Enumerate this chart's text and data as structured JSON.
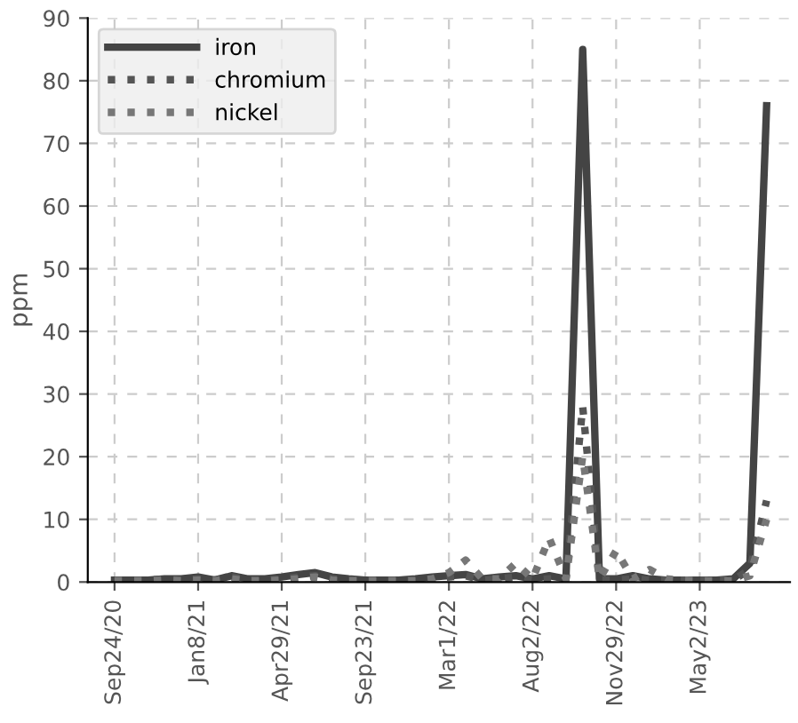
{
  "chart_data": {
    "type": "line",
    "ylabel": "ppm",
    "categories": [
      "Sep24/20",
      null,
      null,
      null,
      null,
      "Jan8/21",
      null,
      null,
      null,
      null,
      "Apr29/21",
      null,
      null,
      null,
      null,
      "Sep23/21",
      null,
      null,
      null,
      null,
      "Mar1/22",
      null,
      null,
      null,
      null,
      "Aug2/22",
      null,
      null,
      null,
      null,
      "Nov29/22",
      null,
      null,
      null,
      null,
      "May2/23",
      null,
      null,
      null,
      null
    ],
    "series": [
      {
        "name": "iron",
        "color": "#444444",
        "line_style": "solid",
        "values": [
          0.3,
          0.3,
          0.3,
          0.5,
          0.5,
          0.8,
          0.3,
          1,
          0.5,
          0.5,
          0.8,
          1.2,
          1.5,
          0.8,
          0.5,
          0.3,
          0.3,
          0.3,
          0.5,
          0.8,
          1,
          1.2,
          0.5,
          0.8,
          1,
          0.5,
          1,
          0.5,
          85,
          0.5,
          0.5,
          1,
          0.5,
          0.3,
          0.3,
          0.3,
          0.3,
          0.5,
          3,
          76
        ]
      },
      {
        "name": "chromium",
        "color": "#555555",
        "line_style": "dotted",
        "values": [
          0.3,
          0.3,
          0.3,
          0.5,
          0.3,
          0.5,
          0.3,
          0.8,
          0.3,
          0.3,
          0.5,
          0.8,
          1,
          0.5,
          0.3,
          0.3,
          0.3,
          0.3,
          0.3,
          0.5,
          0.8,
          1,
          0.3,
          0.5,
          0.8,
          0.3,
          0.5,
          0.5,
          28,
          0.3,
          0.3,
          0.5,
          0.3,
          0.3,
          0.3,
          0.3,
          0.3,
          0.3,
          2,
          13
        ]
      },
      {
        "name": "nickel",
        "color": "#777777",
        "line_style": "dotted",
        "values": [
          0.2,
          0.2,
          0.2,
          0.3,
          0.2,
          0.3,
          0.2,
          0.5,
          0.2,
          0.2,
          0.3,
          0.5,
          0.8,
          0.3,
          0.2,
          0.2,
          0.2,
          0.2,
          0.2,
          0.5,
          1.5,
          3.5,
          0.5,
          0.5,
          3,
          0.5,
          7,
          0.5,
          20,
          0.5,
          5,
          0.5,
          2,
          0.5,
          0.3,
          0.2,
          0.2,
          0.2,
          1,
          10
        ]
      }
    ],
    "ylim": [
      0,
      90
    ],
    "yticks": [
      0,
      10,
      20,
      30,
      40,
      50,
      60,
      70,
      80,
      90
    ],
    "grid": true,
    "legend": "top left"
  }
}
